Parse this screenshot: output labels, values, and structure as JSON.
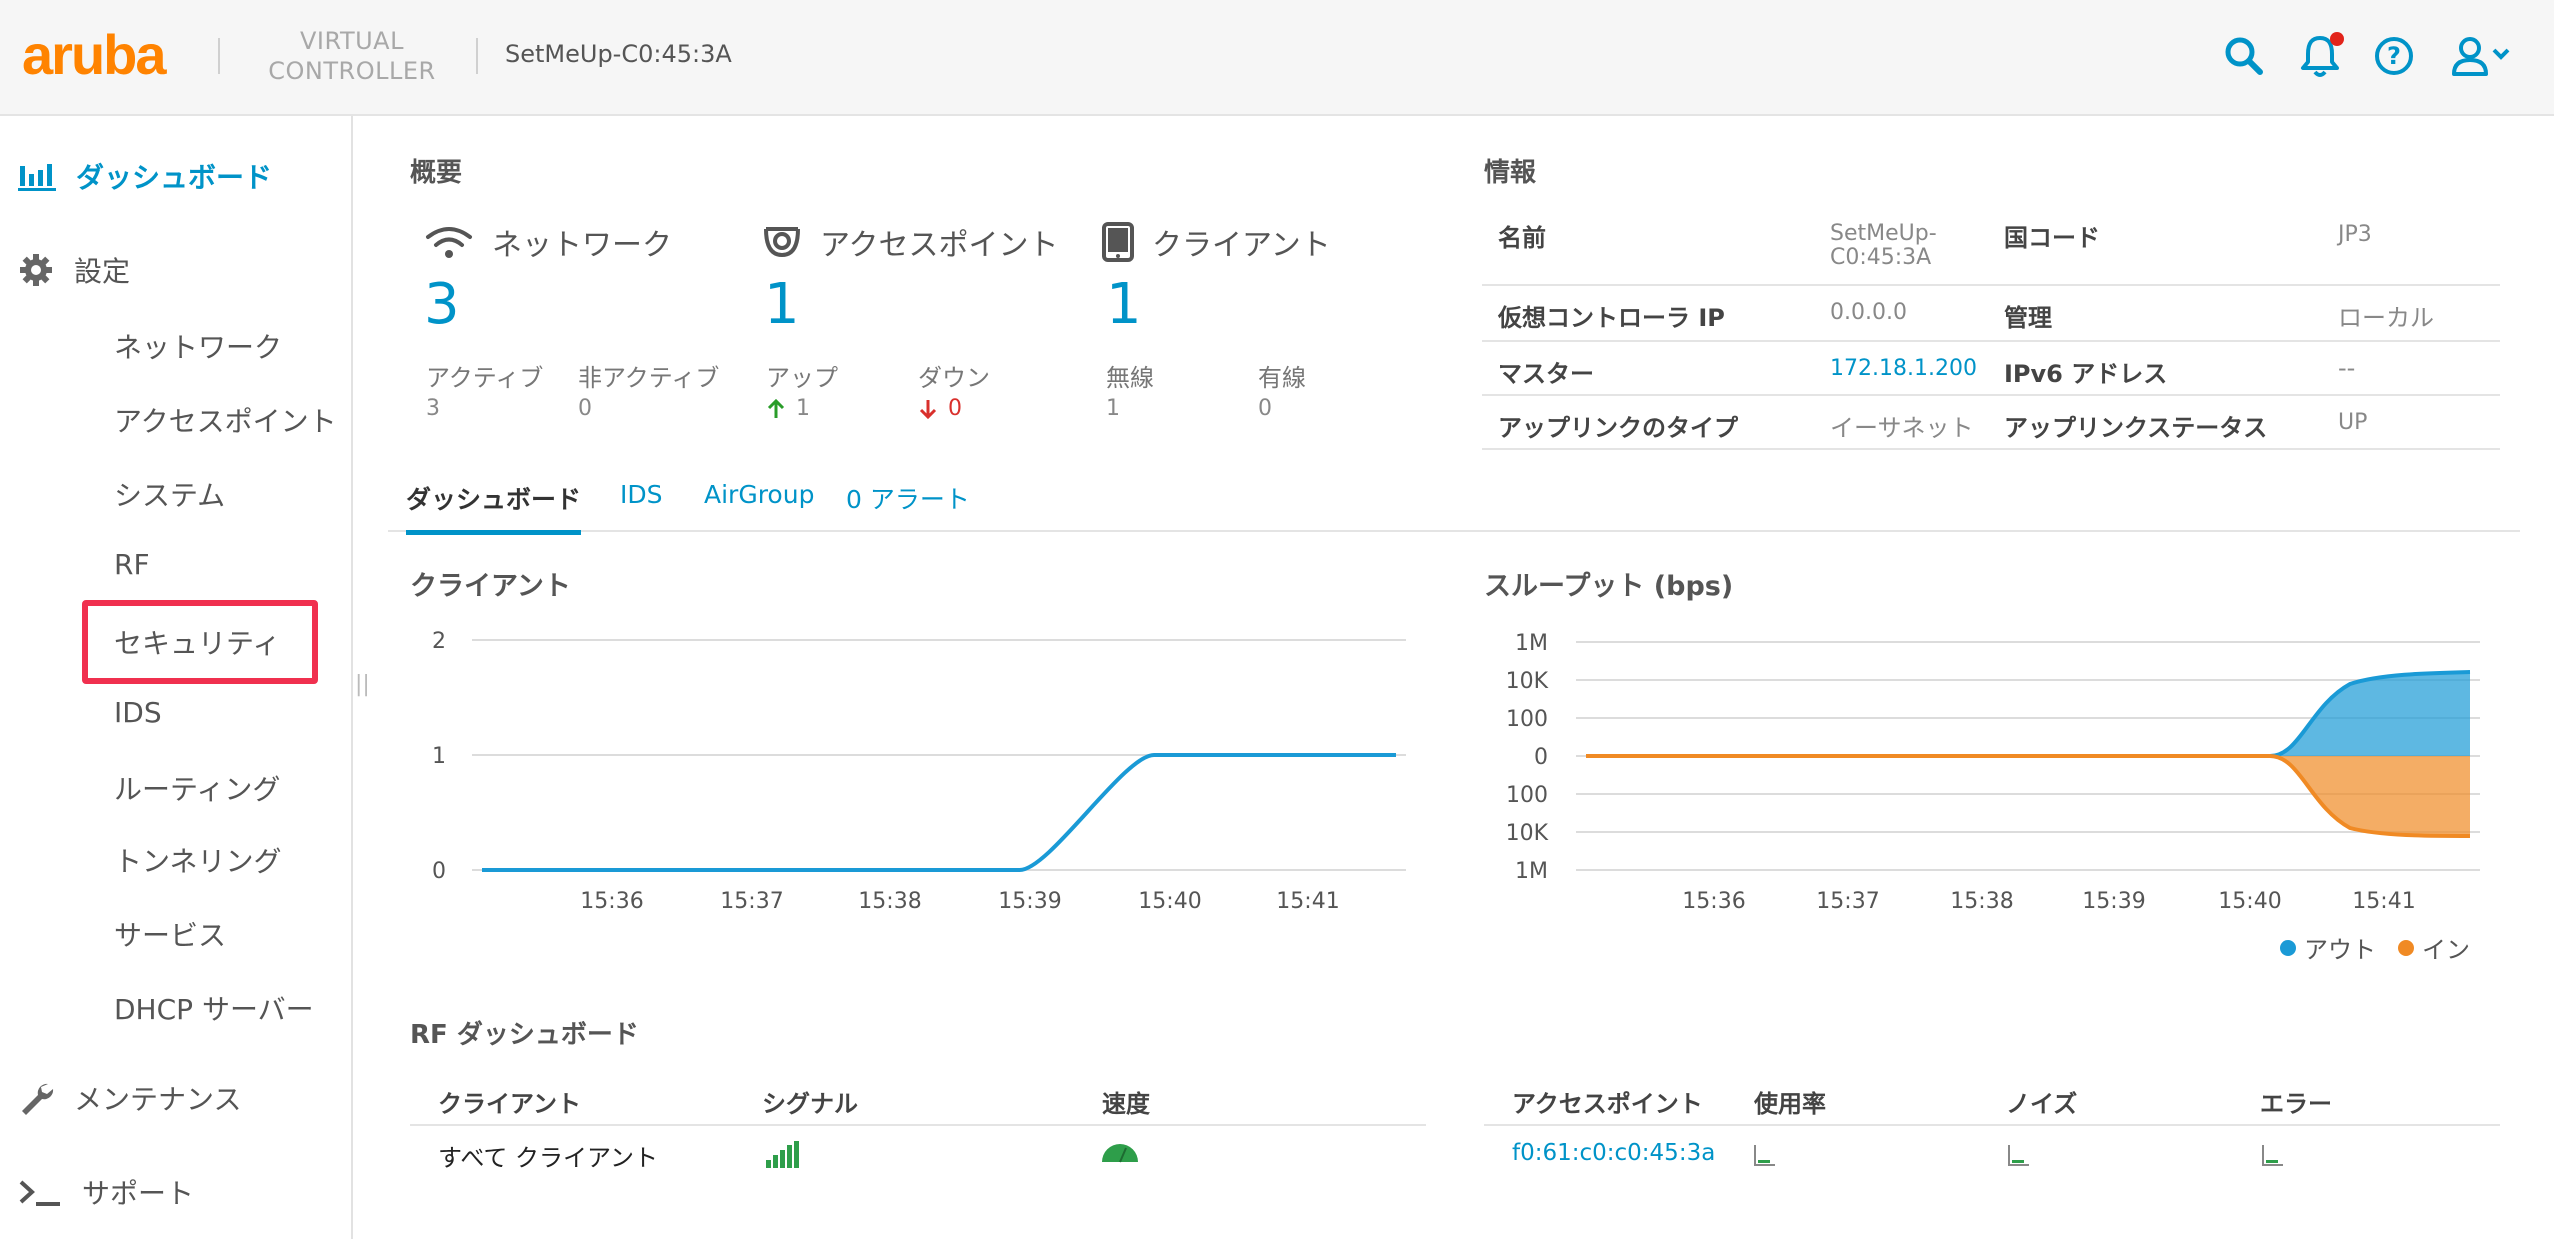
{
  "header": {
    "logo": "aruba",
    "product_line1": "VIRTUAL",
    "product_line2": "CONTROLLER",
    "device_name": "SetMeUp-C0:45:3A",
    "icons": [
      "search-icon",
      "bell-icon",
      "help-icon",
      "user-icon"
    ],
    "accent_color": "#0093c8",
    "logo_color": "#ff8300"
  },
  "sidebar": {
    "dashboard": "ダッシュボード",
    "settings": "設定",
    "settings_items": [
      "ネットワーク",
      "アクセスポイント",
      "システム",
      "RF",
      "セキュリティ",
      "IDS",
      "ルーティング",
      "トンネリング",
      "サービス",
      "DHCP サーバー"
    ],
    "maintenance": "メンテナンス",
    "support": "サポート",
    "highlighted_item": "セキュリティ"
  },
  "overview": {
    "title": "概要",
    "network": {
      "label": "ネットワーク",
      "count": "3",
      "active_label": "アクティブ",
      "active": "3",
      "inactive_label": "非アクティブ",
      "inactive": "0"
    },
    "ap": {
      "label": "アクセスポイント",
      "count": "1",
      "up_label": "アップ",
      "up": "1",
      "down_label": "ダウン",
      "down": "0"
    },
    "client": {
      "label": "クライアント",
      "count": "1",
      "wireless_label": "無線",
      "wireless": "1",
      "wired_label": "有線",
      "wired": "0"
    }
  },
  "info": {
    "title": "情報",
    "name_label": "名前",
    "name": "SetMeUp-C0:45:3A",
    "country_label": "国コード",
    "country": "JP3",
    "vc_ip_label": "仮想コントローラ IP",
    "vc_ip": "0.0.0.0",
    "mgmt_label": "管理",
    "mgmt": "ローカル",
    "master_label": "マスター",
    "master": "172.18.1.200",
    "ipv6_label": "IPv6 アドレス",
    "ipv6": "--",
    "uplink_type_label": "アップリンクのタイプ",
    "uplink_type": "イーサネット",
    "uplink_status_label": "アップリンクステータス",
    "uplink_status": "UP"
  },
  "tabs": [
    "ダッシュボード",
    "IDS",
    "AirGroup",
    "0 アラート"
  ],
  "clients_chart": {
    "title": "クライアント",
    "chart_data": {
      "type": "line",
      "x": [
        "15:36",
        "15:37",
        "15:38",
        "15:39",
        "15:40",
        "15:41"
      ],
      "yticks": [
        "0",
        "1",
        "2"
      ],
      "ylim": [
        0,
        2
      ],
      "series": [
        {
          "values": [
            [
              15.35,
              0
            ],
            [
              15.39,
              0
            ],
            [
              15.395,
              0.5
            ],
            [
              15.4,
              1
            ],
            [
              15.418,
              1
            ]
          ]
        }
      ],
      "color": "#1a9ad6"
    }
  },
  "throughput_chart": {
    "title": "スループット (bps)",
    "chart_data": {
      "type": "area",
      "x": [
        "15:36",
        "15:37",
        "15:38",
        "15:39",
        "15:40",
        "15:41"
      ],
      "yticks": [
        "1M",
        "10K",
        "100",
        "0",
        "100",
        "10K",
        "1M"
      ],
      "scale": "log, mirrored around 0",
      "series": [
        {
          "name": "アウト",
          "color": "#1a9ad6",
          "values": "0 until 15:40, rising to ~30K by 15:41.6"
        },
        {
          "name": "イン",
          "color": "#f08a24",
          "values": "0 until 15:40, falling to ~-30K by 15:41.6"
        }
      ]
    }
  },
  "legend": {
    "out": "アウト",
    "in": "イン"
  },
  "rf": {
    "title": "RF ダッシュボード",
    "left_headers": [
      "クライアント",
      "シグナル",
      "速度"
    ],
    "left_row": "すべて クライアント",
    "right_headers": [
      "アクセスポイント",
      "使用率",
      "ノイズ",
      "エラー"
    ],
    "right_row": "f0:61:c0:c0:45:3a"
  }
}
